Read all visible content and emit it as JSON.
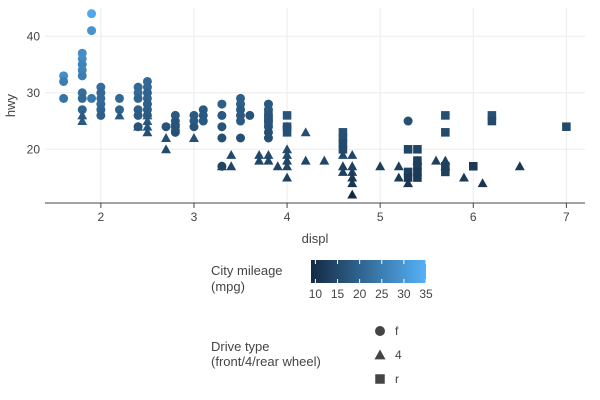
{
  "chart_data": {
    "type": "scatter",
    "xlabel": "displ",
    "ylabel": "hwy",
    "xlim": [
      1.4,
      7.2
    ],
    "ylim": [
      10.5,
      45
    ],
    "x_ticks": [
      2,
      3,
      4,
      5,
      6,
      7
    ],
    "y_ticks": [
      20,
      30,
      40
    ],
    "grid": true,
    "color_scale": {
      "title": [
        "City mileage",
        "(mpg)"
      ],
      "min": 9,
      "max": 35,
      "ticks": [
        10,
        15,
        20,
        25,
        30,
        35
      ],
      "low_color": "#132B43",
      "high_color": "#56B1F7"
    },
    "shape_legend": {
      "title": [
        "Drive type",
        "(front/4/rear wheel)"
      ],
      "items": [
        {
          "label": "f",
          "shape": "circle"
        },
        {
          "label": "4",
          "shape": "triangle"
        },
        {
          "label": "r",
          "shape": "square"
        }
      ]
    },
    "legend_position": "bottom",
    "points": [
      {
        "x": 1.6,
        "y": 33,
        "cty": 28,
        "drv": "f"
      },
      {
        "x": 1.6,
        "y": 32,
        "cty": 25,
        "drv": "f"
      },
      {
        "x": 1.6,
        "y": 29,
        "cty": 23,
        "drv": "f"
      },
      {
        "x": 1.8,
        "y": 37,
        "cty": 28,
        "drv": "f"
      },
      {
        "x": 1.8,
        "y": 36,
        "cty": 28,
        "drv": "f"
      },
      {
        "x": 1.8,
        "y": 35,
        "cty": 26,
        "drv": "f"
      },
      {
        "x": 1.8,
        "y": 34,
        "cty": 26,
        "drv": "f"
      },
      {
        "x": 1.8,
        "y": 33,
        "cty": 25,
        "drv": "f"
      },
      {
        "x": 1.8,
        "y": 30,
        "cty": 22,
        "drv": "f"
      },
      {
        "x": 1.8,
        "y": 29,
        "cty": 21,
        "drv": "f"
      },
      {
        "x": 1.8,
        "y": 27,
        "cty": 20,
        "drv": "f"
      },
      {
        "x": 1.8,
        "y": 26,
        "cty": 18,
        "drv": "4"
      },
      {
        "x": 1.8,
        "y": 25,
        "cty": 18,
        "drv": "4"
      },
      {
        "x": 1.9,
        "y": 44,
        "cty": 33,
        "drv": "f"
      },
      {
        "x": 1.9,
        "y": 41,
        "cty": 29,
        "drv": "f"
      },
      {
        "x": 1.9,
        "y": 29,
        "cty": 24,
        "drv": "f"
      },
      {
        "x": 2.0,
        "y": 31,
        "cty": 22,
        "drv": "f"
      },
      {
        "x": 2.0,
        "y": 30,
        "cty": 21,
        "drv": "f"
      },
      {
        "x": 2.0,
        "y": 29,
        "cty": 21,
        "drv": "f"
      },
      {
        "x": 2.0,
        "y": 28,
        "cty": 21,
        "drv": "f"
      },
      {
        "x": 2.0,
        "y": 27,
        "cty": 20,
        "drv": "f"
      },
      {
        "x": 2.0,
        "y": 26,
        "cty": 19,
        "drv": "f"
      },
      {
        "x": 2.2,
        "y": 29,
        "cty": 21,
        "drv": "f"
      },
      {
        "x": 2.2,
        "y": 27,
        "cty": 20,
        "drv": "f"
      },
      {
        "x": 2.2,
        "y": 26,
        "cty": 18,
        "drv": "4"
      },
      {
        "x": 2.4,
        "y": 31,
        "cty": 21,
        "drv": "f"
      },
      {
        "x": 2.4,
        "y": 30,
        "cty": 21,
        "drv": "f"
      },
      {
        "x": 2.4,
        "y": 29,
        "cty": 20,
        "drv": "f"
      },
      {
        "x": 2.4,
        "y": 27,
        "cty": 19,
        "drv": "f"
      },
      {
        "x": 2.4,
        "y": 26,
        "cty": 18,
        "drv": "f"
      },
      {
        "x": 2.4,
        "y": 24,
        "cty": 17,
        "drv": "f"
      },
      {
        "x": 2.4,
        "y": 24,
        "cty": 17,
        "drv": "4"
      },
      {
        "x": 2.5,
        "y": 32,
        "cty": 21,
        "drv": "f"
      },
      {
        "x": 2.5,
        "y": 31,
        "cty": 21,
        "drv": "f"
      },
      {
        "x": 2.5,
        "y": 30,
        "cty": 20,
        "drv": "f"
      },
      {
        "x": 2.5,
        "y": 29,
        "cty": 20,
        "drv": "f"
      },
      {
        "x": 2.5,
        "y": 28,
        "cty": 19,
        "drv": "f"
      },
      {
        "x": 2.5,
        "y": 27,
        "cty": 19,
        "drv": "f"
      },
      {
        "x": 2.5,
        "y": 26,
        "cty": 18,
        "drv": "f"
      },
      {
        "x": 2.5,
        "y": 26,
        "cty": 18,
        "drv": "4"
      },
      {
        "x": 2.5,
        "y": 25,
        "cty": 18,
        "drv": "4"
      },
      {
        "x": 2.5,
        "y": 24,
        "cty": 17,
        "drv": "4"
      },
      {
        "x": 2.5,
        "y": 23,
        "cty": 16,
        "drv": "4"
      },
      {
        "x": 2.7,
        "y": 24,
        "cty": 17,
        "drv": "f"
      },
      {
        "x": 2.7,
        "y": 22,
        "cty": 16,
        "drv": "4"
      },
      {
        "x": 2.7,
        "y": 20,
        "cty": 15,
        "drv": "4"
      },
      {
        "x": 2.8,
        "y": 26,
        "cty": 18,
        "drv": "f"
      },
      {
        "x": 2.8,
        "y": 25,
        "cty": 18,
        "drv": "f"
      },
      {
        "x": 2.8,
        "y": 24,
        "cty": 17,
        "drv": "f"
      },
      {
        "x": 2.8,
        "y": 23,
        "cty": 16,
        "drv": "f"
      },
      {
        "x": 2.8,
        "y": 24,
        "cty": 17,
        "drv": "4"
      },
      {
        "x": 2.8,
        "y": 25,
        "cty": 17,
        "drv": "4"
      },
      {
        "x": 3.0,
        "y": 26,
        "cty": 18,
        "drv": "f"
      },
      {
        "x": 3.0,
        "y": 25,
        "cty": 18,
        "drv": "f"
      },
      {
        "x": 3.0,
        "y": 24,
        "cty": 17,
        "drv": "f"
      },
      {
        "x": 3.0,
        "y": 22,
        "cty": 16,
        "drv": "4"
      },
      {
        "x": 3.1,
        "y": 27,
        "cty": 18,
        "drv": "f"
      },
      {
        "x": 3.1,
        "y": 26,
        "cty": 18,
        "drv": "f"
      },
      {
        "x": 3.1,
        "y": 25,
        "cty": 18,
        "drv": "f"
      },
      {
        "x": 3.3,
        "y": 28,
        "cty": 19,
        "drv": "f"
      },
      {
        "x": 3.3,
        "y": 26,
        "cty": 18,
        "drv": "f"
      },
      {
        "x": 3.3,
        "y": 24,
        "cty": 17,
        "drv": "f"
      },
      {
        "x": 3.3,
        "y": 22,
        "cty": 16,
        "drv": "f"
      },
      {
        "x": 3.3,
        "y": 17,
        "cty": 14,
        "drv": "f"
      },
      {
        "x": 3.3,
        "y": 17,
        "cty": 14,
        "drv": "4"
      },
      {
        "x": 3.4,
        "y": 19,
        "cty": 15,
        "drv": "4"
      },
      {
        "x": 3.4,
        "y": 17,
        "cty": 14,
        "drv": "4"
      },
      {
        "x": 3.5,
        "y": 29,
        "cty": 19,
        "drv": "f"
      },
      {
        "x": 3.5,
        "y": 28,
        "cty": 19,
        "drv": "f"
      },
      {
        "x": 3.5,
        "y": 27,
        "cty": 18,
        "drv": "f"
      },
      {
        "x": 3.5,
        "y": 26,
        "cty": 18,
        "drv": "f"
      },
      {
        "x": 3.5,
        "y": 25,
        "cty": 18,
        "drv": "f"
      },
      {
        "x": 3.5,
        "y": 22,
        "cty": 16,
        "drv": "f"
      },
      {
        "x": 3.6,
        "y": 26,
        "cty": 17,
        "drv": "f"
      },
      {
        "x": 3.7,
        "y": 19,
        "cty": 15,
        "drv": "4"
      },
      {
        "x": 3.7,
        "y": 18,
        "cty": 14,
        "drv": "4"
      },
      {
        "x": 3.8,
        "y": 28,
        "cty": 18,
        "drv": "f"
      },
      {
        "x": 3.8,
        "y": 27,
        "cty": 18,
        "drv": "f"
      },
      {
        "x": 3.8,
        "y": 26,
        "cty": 18,
        "drv": "f"
      },
      {
        "x": 3.8,
        "y": 25,
        "cty": 17,
        "drv": "f"
      },
      {
        "x": 3.8,
        "y": 24,
        "cty": 17,
        "drv": "f"
      },
      {
        "x": 3.8,
        "y": 23,
        "cty": 16,
        "drv": "f"
      },
      {
        "x": 3.8,
        "y": 22,
        "cty": 16,
        "drv": "f"
      },
      {
        "x": 3.8,
        "y": 26,
        "cty": 17,
        "drv": "r"
      },
      {
        "x": 3.8,
        "y": 25,
        "cty": 17,
        "drv": "r"
      },
      {
        "x": 3.8,
        "y": 19,
        "cty": 15,
        "drv": "4"
      },
      {
        "x": 3.8,
        "y": 18,
        "cty": 14,
        "drv": "4"
      },
      {
        "x": 3.9,
        "y": 17,
        "cty": 14,
        "drv": "4"
      },
      {
        "x": 4.0,
        "y": 26,
        "cty": 17,
        "drv": "r"
      },
      {
        "x": 4.0,
        "y": 24,
        "cty": 16,
        "drv": "r"
      },
      {
        "x": 4.0,
        "y": 23,
        "cty": 16,
        "drv": "r"
      },
      {
        "x": 4.0,
        "y": 24,
        "cty": 16,
        "drv": "f"
      },
      {
        "x": 4.0,
        "y": 20,
        "cty": 15,
        "drv": "4"
      },
      {
        "x": 4.0,
        "y": 19,
        "cty": 15,
        "drv": "4"
      },
      {
        "x": 4.0,
        "y": 18,
        "cty": 14,
        "drv": "4"
      },
      {
        "x": 4.0,
        "y": 17,
        "cty": 14,
        "drv": "4"
      },
      {
        "x": 4.0,
        "y": 15,
        "cty": 13,
        "drv": "4"
      },
      {
        "x": 4.2,
        "y": 23,
        "cty": 16,
        "drv": "4"
      },
      {
        "x": 4.2,
        "y": 18,
        "cty": 14,
        "drv": "4"
      },
      {
        "x": 4.4,
        "y": 18,
        "cty": 14,
        "drv": "4"
      },
      {
        "x": 4.6,
        "y": 23,
        "cty": 16,
        "drv": "r"
      },
      {
        "x": 4.6,
        "y": 22,
        "cty": 16,
        "drv": "r"
      },
      {
        "x": 4.6,
        "y": 21,
        "cty": 15,
        "drv": "r"
      },
      {
        "x": 4.6,
        "y": 20,
        "cty": 15,
        "drv": "r"
      },
      {
        "x": 4.6,
        "y": 19,
        "cty": 15,
        "drv": "4"
      },
      {
        "x": 4.6,
        "y": 17,
        "cty": 13,
        "drv": "4"
      },
      {
        "x": 4.6,
        "y": 16,
        "cty": 13,
        "drv": "4"
      },
      {
        "x": 4.7,
        "y": 19,
        "cty": 14,
        "drv": "4"
      },
      {
        "x": 4.7,
        "y": 17,
        "cty": 13,
        "drv": "4"
      },
      {
        "x": 4.7,
        "y": 16,
        "cty": 13,
        "drv": "4"
      },
      {
        "x": 4.7,
        "y": 15,
        "cty": 12,
        "drv": "4"
      },
      {
        "x": 4.7,
        "y": 14,
        "cty": 11,
        "drv": "4"
      },
      {
        "x": 4.7,
        "y": 12,
        "cty": 9,
        "drv": "4"
      },
      {
        "x": 5.0,
        "y": 17,
        "cty": 13,
        "drv": "4"
      },
      {
        "x": 5.2,
        "y": 17,
        "cty": 13,
        "drv": "4"
      },
      {
        "x": 5.2,
        "y": 15,
        "cty": 12,
        "drv": "4"
      },
      {
        "x": 5.3,
        "y": 25,
        "cty": 16,
        "drv": "f"
      },
      {
        "x": 5.3,
        "y": 20,
        "cty": 14,
        "drv": "r"
      },
      {
        "x": 5.3,
        "y": 16,
        "cty": 13,
        "drv": "r"
      },
      {
        "x": 5.3,
        "y": 15,
        "cty": 12,
        "drv": "r"
      },
      {
        "x": 5.3,
        "y": 14,
        "cty": 11,
        "drv": "4"
      },
      {
        "x": 5.4,
        "y": 20,
        "cty": 14,
        "drv": "r"
      },
      {
        "x": 5.4,
        "y": 18,
        "cty": 13,
        "drv": "r"
      },
      {
        "x": 5.4,
        "y": 17,
        "cty": 13,
        "drv": "r"
      },
      {
        "x": 5.4,
        "y": 16,
        "cty": 12,
        "drv": "r"
      },
      {
        "x": 5.4,
        "y": 15,
        "cty": 12,
        "drv": "r"
      },
      {
        "x": 5.4,
        "y": 18,
        "cty": 13,
        "drv": "4"
      },
      {
        "x": 5.6,
        "y": 18,
        "cty": 13,
        "drv": "4"
      },
      {
        "x": 5.7,
        "y": 26,
        "cty": 16,
        "drv": "r"
      },
      {
        "x": 5.7,
        "y": 23,
        "cty": 15,
        "drv": "r"
      },
      {
        "x": 5.7,
        "y": 17,
        "cty": 13,
        "drv": "r"
      },
      {
        "x": 5.7,
        "y": 16,
        "cty": 13,
        "drv": "r"
      },
      {
        "x": 5.7,
        "y": 18,
        "cty": 13,
        "drv": "4"
      },
      {
        "x": 5.7,
        "y": 17,
        "cty": 13,
        "drv": "4"
      },
      {
        "x": 5.9,
        "y": 15,
        "cty": 12,
        "drv": "4"
      },
      {
        "x": 6.0,
        "y": 17,
        "cty": 12,
        "drv": "r"
      },
      {
        "x": 6.1,
        "y": 14,
        "cty": 11,
        "drv": "4"
      },
      {
        "x": 6.2,
        "y": 26,
        "cty": 16,
        "drv": "r"
      },
      {
        "x": 6.2,
        "y": 25,
        "cty": 15,
        "drv": "r"
      },
      {
        "x": 6.5,
        "y": 17,
        "cty": 12,
        "drv": "4"
      },
      {
        "x": 7.0,
        "y": 24,
        "cty": 15,
        "drv": "r"
      }
    ]
  }
}
